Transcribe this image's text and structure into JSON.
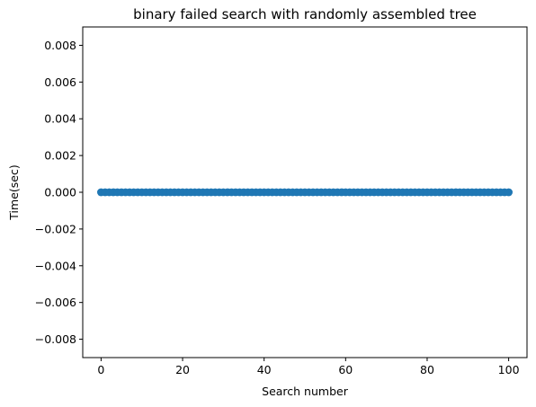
{
  "chart_data": {
    "type": "scatter",
    "title": "binary failed search with randomly assembled tree",
    "xlabel": "Search number",
    "ylabel": "Time(sec)",
    "xlim": [
      -4.5,
      104.5
    ],
    "ylim": [
      -0.009,
      0.009
    ],
    "x_ticks": [
      0,
      20,
      40,
      60,
      80,
      100
    ],
    "x_tick_labels": [
      "0",
      "20",
      "40",
      "60",
      "80",
      "100"
    ],
    "y_ticks": [
      0.008,
      0.006,
      0.004,
      0.002,
      0.0,
      -0.002,
      -0.004,
      -0.006,
      -0.008
    ],
    "y_tick_labels": [
      "0.008",
      "0.006",
      "0.004",
      "0.002",
      "0.000",
      "−0.002",
      "−0.004",
      "−0.006",
      "−0.008"
    ],
    "grid": false,
    "series": [
      {
        "color": "#1f77b4",
        "marker": "circle",
        "x_start": 0,
        "x_end": 100,
        "x_step": 1,
        "y_constant": 0.0
      }
    ]
  }
}
